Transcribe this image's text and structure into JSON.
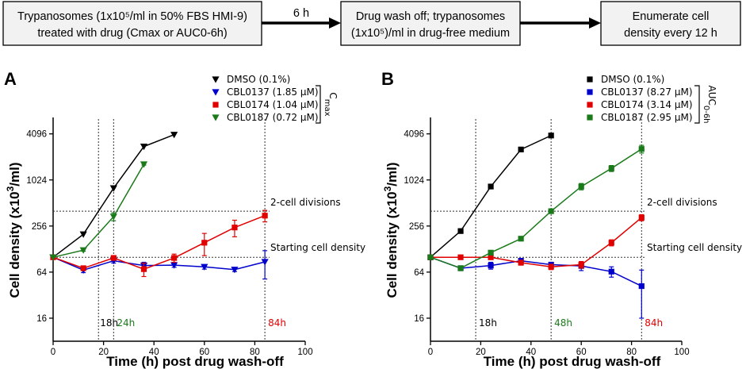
{
  "workflow": {
    "steps": [
      {
        "line1": "Trypanosomes (1x10⁵/ml in 50% FBS HMI-9)",
        "line2": "treated with drug (Cmax or AUC0-6h)"
      },
      {
        "line1": "Drug wash off; trypanosomes",
        "line2": "(1x10⁵)/ml in drug-free medium"
      },
      {
        "line1": "Enumerate cell",
        "line2": "density every 12 h"
      }
    ],
    "arrow_label": "6 h"
  },
  "chart_data": [
    {
      "type": "line",
      "panel": "A",
      "xlabel": "Time (h) post drug wash-off",
      "ylabel": "Cell density (x10³/ml)",
      "yscale": "log2",
      "xlim": [
        0,
        100
      ],
      "ylim": [
        8,
        6400
      ],
      "xticks": [
        "0",
        "20",
        "40",
        "60",
        "80",
        "100"
      ],
      "yticks": [
        "16",
        "64",
        "256",
        "1024",
        "4096"
      ],
      "bracket_label": "Cmax",
      "series": [
        {
          "name": "DMSO (0.1%)",
          "marker": "triangle-down",
          "color": "#000000",
          "x": [
            0,
            12,
            24,
            36,
            48
          ],
          "y": [
            100,
            200,
            800,
            2800,
            4000
          ],
          "err": [
            0,
            0,
            0,
            0,
            0
          ]
        },
        {
          "name": "CBL0137 (1.85 µM)",
          "marker": "triangle-down",
          "color": "#0000cc",
          "x": [
            0,
            12,
            24,
            36,
            48,
            60,
            72,
            84
          ],
          "y": [
            100,
            68,
            90,
            78,
            79,
            75,
            69,
            87
          ],
          "err": [
            0,
            5,
            6,
            8,
            5,
            5,
            4,
            35
          ]
        },
        {
          "name": "CBL0174 (1.04 µM)",
          "marker": "square",
          "color": "#e00000",
          "x": [
            0,
            12,
            24,
            36,
            48,
            60,
            72,
            84
          ],
          "y": [
            100,
            72,
            98,
            70,
            98,
            155,
            245,
            350
          ],
          "err": [
            0,
            5,
            6,
            14,
            12,
            50,
            60,
            60
          ]
        },
        {
          "name": "CBL0187 (0.72 µM)",
          "marker": "triangle-down",
          "color": "#1a7a1a",
          "x": [
            0,
            12,
            24,
            36
          ],
          "y": [
            100,
            124,
            340,
            1640
          ],
          "err": [
            0,
            4,
            40,
            40
          ]
        }
      ],
      "hlines": [
        {
          "y": 100,
          "label": "Starting cell density"
        },
        {
          "y": 400,
          "label": "2-cell divisions"
        }
      ],
      "vlines": [
        {
          "x": 18,
          "label": "18h",
          "color": "#000000"
        },
        {
          "x": 24,
          "label": "24h",
          "color": "#1a7a1a"
        },
        {
          "x": 84,
          "label": "84h",
          "color": "#e00000"
        }
      ]
    },
    {
      "type": "line",
      "panel": "B",
      "xlabel": "Time (h) post drug wash-off",
      "ylabel": "Cell density (x10³/ml)",
      "yscale": "log2",
      "xlim": [
        0,
        100
      ],
      "ylim": [
        8,
        6400
      ],
      "xticks": [
        "0",
        "20",
        "40",
        "60",
        "80",
        "100"
      ],
      "yticks": [
        "16",
        "64",
        "256",
        "1024",
        "4096"
      ],
      "bracket_label": "AUC0-6h",
      "series": [
        {
          "name": "DMSO (0.1%)",
          "marker": "square",
          "color": "#000000",
          "x": [
            0,
            12,
            24,
            36,
            48
          ],
          "y": [
            100,
            220,
            840,
            2560,
            3900
          ],
          "err": [
            0,
            0,
            0,
            0,
            0
          ]
        },
        {
          "name": "CBL0137 (8.27 µM)",
          "marker": "square",
          "color": "#0000cc",
          "x": [
            0,
            12,
            24,
            36,
            48,
            60,
            72,
            84
          ],
          "y": [
            100,
            72,
            78,
            90,
            80,
            77,
            65,
            42
          ],
          "err": [
            0,
            5,
            8,
            6,
            6,
            10,
            10,
            26
          ]
        },
        {
          "name": "CBL0174 (3.14 µM)",
          "marker": "square",
          "color": "#e00000",
          "x": [
            0,
            12,
            24,
            36,
            48,
            60,
            72,
            84
          ],
          "y": [
            100,
            100,
            100,
            85,
            75,
            80,
            155,
            330
          ],
          "err": [
            0,
            4,
            6,
            6,
            6,
            8,
            14,
            30
          ]
        },
        {
          "name": "CBL0187 (2.95 µM)",
          "marker": "square",
          "color": "#1a7a1a",
          "x": [
            0,
            12,
            24,
            36,
            48,
            60,
            72,
            84
          ],
          "y": [
            100,
            72,
            115,
            175,
            400,
            840,
            1450,
            2600
          ],
          "err": [
            0,
            5,
            6,
            8,
            10,
            80,
            130,
            300
          ]
        }
      ],
      "hlines": [
        {
          "y": 100,
          "label": "Starting cell density"
        },
        {
          "y": 400,
          "label": "2-cell divisions"
        }
      ],
      "vlines": [
        {
          "x": 18,
          "label": "18h",
          "color": "#000000"
        },
        {
          "x": 48,
          "label": "48h",
          "color": "#1a7a1a"
        },
        {
          "x": 84,
          "label": "84h",
          "color": "#e00000"
        }
      ]
    }
  ]
}
